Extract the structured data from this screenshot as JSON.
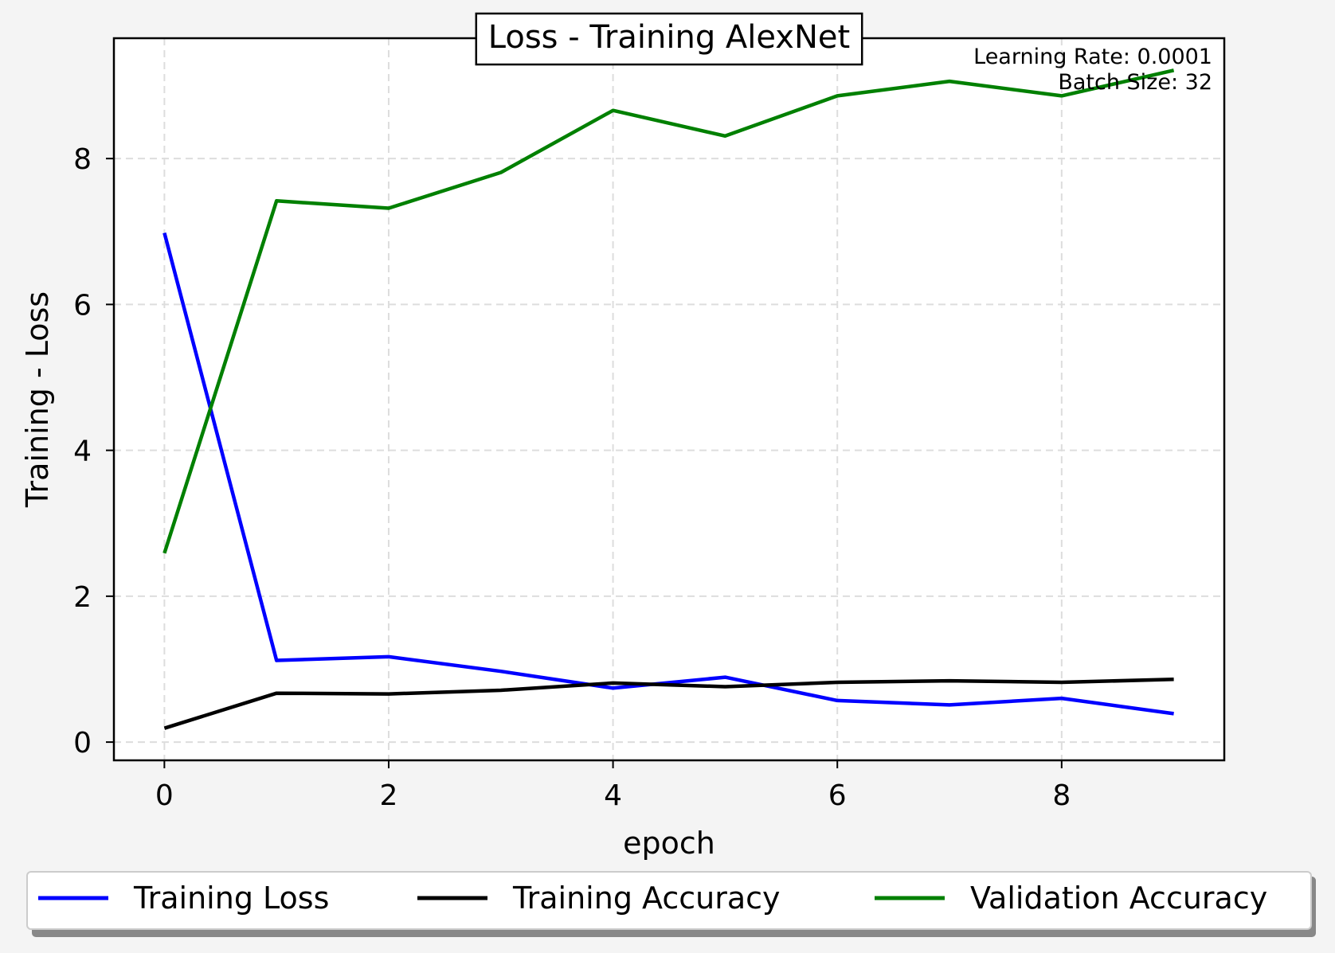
{
  "chart_data": {
    "type": "line",
    "title": "Loss - Training AlexNet",
    "xlabel": "epoch",
    "ylabel": "Training - Loss",
    "x": [
      0,
      1,
      2,
      3,
      4,
      5,
      6,
      7,
      8,
      9
    ],
    "xlim": [
      -0.45,
      9.45
    ],
    "ylim": [
      -0.25,
      9.65
    ],
    "xticks": [
      0,
      2,
      4,
      6,
      8
    ],
    "yticks": [
      0,
      2,
      4,
      6,
      8
    ],
    "grid": true,
    "legend_position": "bottom",
    "annotations": [
      "Learning Rate: 0.0001",
      "Batch Size: 32"
    ],
    "series": [
      {
        "name": "Training Loss",
        "color": "#0000ff",
        "values": [
          6.98,
          1.12,
          1.17,
          0.97,
          0.74,
          0.89,
          0.57,
          0.51,
          0.6,
          0.39
        ]
      },
      {
        "name": "Training Accuracy",
        "color": "#000000",
        "values": [
          0.19,
          0.67,
          0.66,
          0.71,
          0.81,
          0.76,
          0.82,
          0.84,
          0.82,
          0.86
        ]
      },
      {
        "name": "Validation Accuracy",
        "color": "#008000",
        "values": [
          2.59,
          7.42,
          7.32,
          7.81,
          8.66,
          8.31,
          8.86,
          9.06,
          8.86,
          9.21
        ]
      }
    ]
  }
}
